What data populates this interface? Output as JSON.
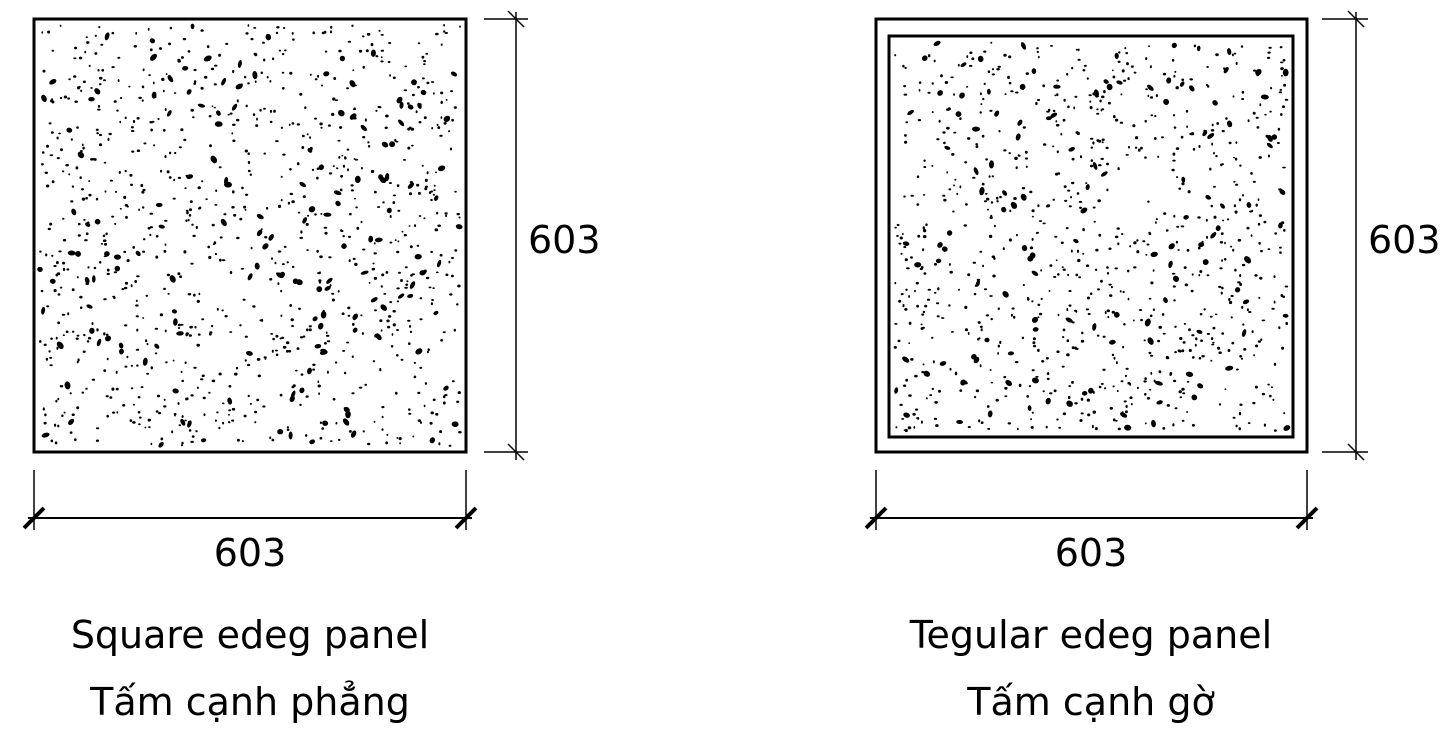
{
  "panels": [
    {
      "id": "square",
      "edge_type": "square",
      "width_label": "603",
      "height_label": "603",
      "caption_en": "Square edeg panel",
      "caption_vi": "Tấm cạnh phẳng"
    },
    {
      "id": "tegular",
      "edge_type": "tegular",
      "width_label": "603",
      "height_label": "603",
      "caption_en": "Tegular edeg panel",
      "caption_vi": "Tấm cạnh gờ"
    }
  ]
}
